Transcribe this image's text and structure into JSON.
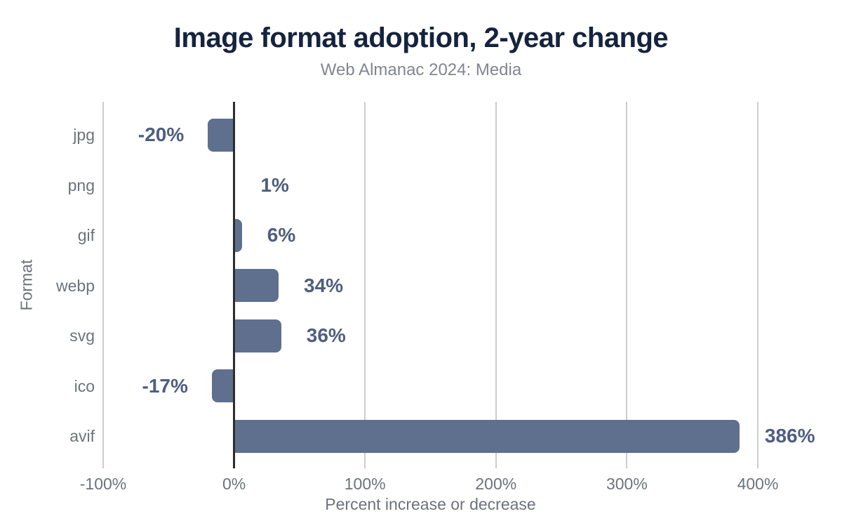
{
  "header": {
    "title": "Image format adoption, 2-year change",
    "subtitle": "Web Almanac 2024: Media"
  },
  "chart_data": {
    "type": "bar",
    "orientation": "horizontal",
    "title": "Image format adoption, 2-year change",
    "subtitle": "Web Almanac 2024: Media",
    "categories": [
      "jpg",
      "png",
      "gif",
      "webp",
      "svg",
      "ico",
      "avif"
    ],
    "values": [
      -20,
      1,
      6,
      34,
      36,
      -17,
      386
    ],
    "value_labels": [
      "-20%",
      "1%",
      "6%",
      "34%",
      "36%",
      "-17%",
      "386%"
    ],
    "xlabel": "Percent increase or decrease",
    "ylabel": "Format",
    "xlim": [
      -100,
      456
    ],
    "x_ticks": [
      -100,
      0,
      100,
      200,
      300,
      400
    ],
    "x_tick_labels": [
      "-100%",
      "0%",
      "100%",
      "200%",
      "300%",
      "400%"
    ],
    "grid": "vertical-only",
    "legend": "none",
    "colors": {
      "bar": "#5f6f8e",
      "value_label": "#4e5e80",
      "title": "#16233e",
      "subtitle": "#81868f",
      "axis_text": "#6d727b",
      "gridline": "#cdcdcd",
      "zero_line": "#2d2d2d",
      "background": "#ffffff"
    }
  }
}
